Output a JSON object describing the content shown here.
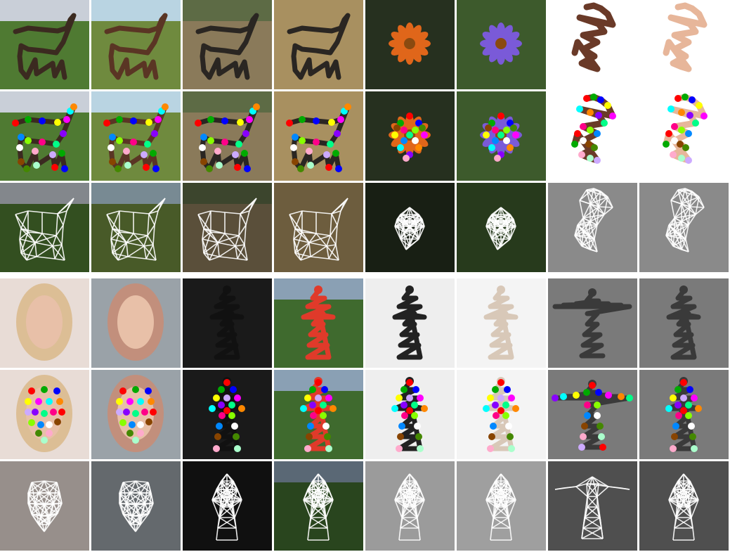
{
  "figure": {
    "blocks": [
      {
        "name": "objects",
        "columns": [
          {
            "subject": "horse",
            "bg": "#4f7a32",
            "sky": "#c9cfd8",
            "fg": "#3b2a20",
            "kind": "quadruped"
          },
          {
            "subject": "horse",
            "bg": "#6f8a3e",
            "sky": "#b9d4e2",
            "fg": "#5a3524",
            "kind": "quadruped"
          },
          {
            "subject": "zebra",
            "bg": "#8a7a5a",
            "sky": "#5d6b45",
            "fg": "#2a2622",
            "kind": "quadruped"
          },
          {
            "subject": "zebra",
            "bg": "#a89060",
            "sky": "#a89060",
            "fg": "#2a2622",
            "kind": "quadruped"
          },
          {
            "subject": "flower",
            "bg": "#26301f",
            "sky": "#26301f",
            "fg": "#e0661a",
            "kind": "flower"
          },
          {
            "subject": "flower",
            "bg": "#3d5a2c",
            "sky": "#3d5a2c",
            "fg": "#7a5ad8",
            "kind": "flower"
          },
          {
            "subject": "hand",
            "bg": "#ffffff",
            "sky": "#ffffff",
            "fg": "#6a3a28",
            "kind": "hand"
          },
          {
            "subject": "hand",
            "bg": "#ffffff",
            "sky": "#ffffff",
            "fg": "#e7b69a",
            "kind": "hand"
          }
        ],
        "rows": [
          "image",
          "keypoints",
          "structure"
        ]
      },
      {
        "name": "people",
        "columns": [
          {
            "subject": "face",
            "bg": "#e8dcd6",
            "sky": "#e8dcd6",
            "fg": "#d9b98a",
            "kind": "face"
          },
          {
            "subject": "face",
            "bg": "#9aa2a8",
            "sky": "#9aa2a8",
            "fg": "#c98c74",
            "kind": "face"
          },
          {
            "subject": "person",
            "bg": "#1a1a1a",
            "sky": "#1a1a1a",
            "fg": "#111111",
            "kind": "person"
          },
          {
            "subject": "person",
            "bg": "#3f6a2e",
            "sky": "#8aa0b4",
            "fg": "#e03a2a",
            "kind": "person"
          },
          {
            "subject": "person",
            "bg": "#eeeeee",
            "sky": "#eeeeee",
            "fg": "#222222",
            "kind": "person"
          },
          {
            "subject": "person",
            "bg": "#f4f4f4",
            "sky": "#f4f4f4",
            "fg": "#d8c8b8",
            "kind": "person"
          },
          {
            "subject": "person",
            "bg": "#7a7a7a",
            "sky": "#7a7a7a",
            "fg": "#3a3a3a",
            "kind": "tpose"
          },
          {
            "subject": "person",
            "bg": "#7a7a7a",
            "sky": "#7a7a7a",
            "fg": "#3a3a3a",
            "kind": "person"
          }
        ],
        "rows": [
          "image",
          "keypoints",
          "structure"
        ]
      }
    ],
    "keypoint_colors": [
      "#ff0000",
      "#00aa00",
      "#0000ff",
      "#ffff00",
      "#ff00ff",
      "#00ffff",
      "#ff8800",
      "#8800ff",
      "#00ff88",
      "#ff0088",
      "#88ff00",
      "#0088ff",
      "#ffffff",
      "#884400",
      "#448800",
      "#ffaacc",
      "#aaffcc",
      "#ccaaff"
    ],
    "structure_line_color": "#ffffff"
  }
}
